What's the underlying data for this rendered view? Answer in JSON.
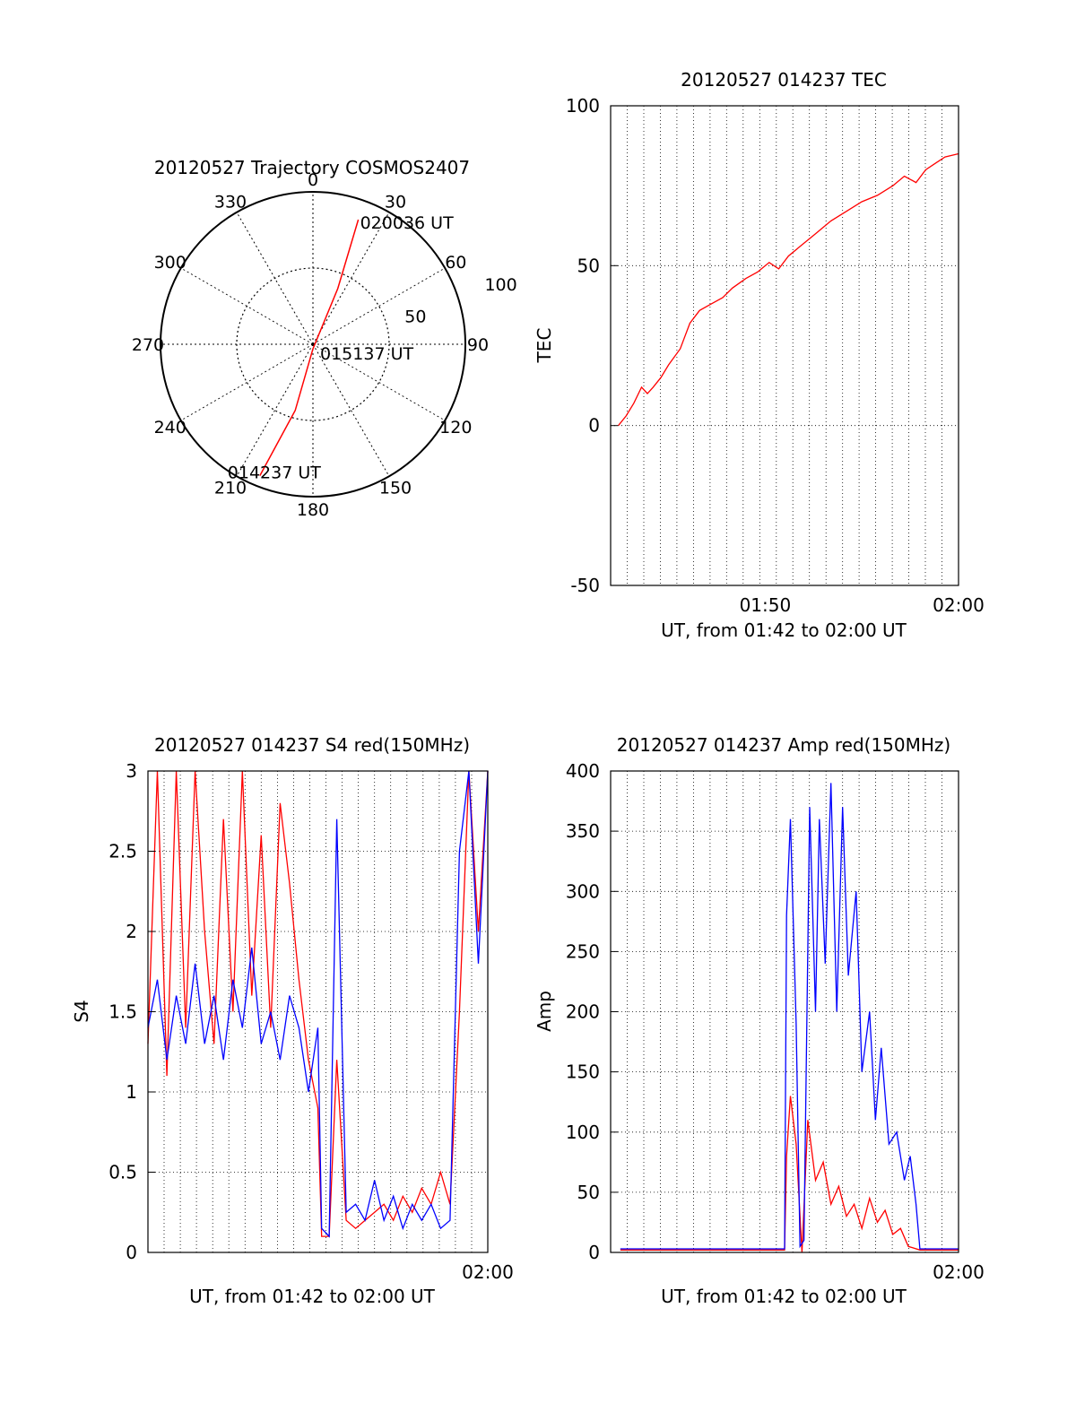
{
  "colors": {
    "red": "#ff0000",
    "blue": "#0000ff",
    "axis": "#000000",
    "grid": "#000000"
  },
  "chart_data": [
    {
      "id": "trajectory",
      "type": "polar",
      "title": "20120527 Trajectory COSMOS2407",
      "azimuth_labels": [
        "0",
        "30",
        "60",
        "90",
        "120",
        "150",
        "180",
        "210",
        "240",
        "270",
        "300",
        "330"
      ],
      "radial_labels": [
        "50",
        "100"
      ],
      "grid": true,
      "series": [
        {
          "color": "#ff0000",
          "points": [
            {
              "az": 202,
              "el_ratio": 0.93
            },
            {
              "az": 195,
              "el_ratio": 0.45
            },
            {
              "az": 180,
              "el_ratio": 0.03
            },
            {
              "az": 24,
              "el_ratio": 0.4
            },
            {
              "az": 20,
              "el_ratio": 0.87
            }
          ]
        }
      ],
      "annotations": [
        {
          "text": "020036 UT",
          "az": 20,
          "el_ratio": 0.87
        },
        {
          "text": "015137 UT",
          "az": 180,
          "el_ratio": 0.03
        },
        {
          "text": "014237 UT",
          "az": 202,
          "el_ratio": 0.93
        }
      ]
    },
    {
      "id": "tec",
      "type": "line",
      "title": "20120527 014237 TEC",
      "xlabel": "UT, from 01:42 to 02:00 UT",
      "ylabel": "TEC",
      "xlim": [
        0,
        18.0
      ],
      "ylim": [
        -50,
        100
      ],
      "yticks": [
        "100",
        "50",
        "0",
        "-50"
      ],
      "ytick_values": [
        100,
        50,
        0,
        -50
      ],
      "xticks": [
        "01:50",
        "02:00"
      ],
      "xtick_values": [
        8,
        18
      ],
      "grid": true,
      "series": [
        {
          "color": "#ff0000",
          "x": [
            0.4,
            0.8,
            1.2,
            1.6,
            1.9,
            2.2,
            2.6,
            3.0,
            3.6,
            4.1,
            4.6,
            5.2,
            5.8,
            6.3,
            7.0,
            7.6,
            8.2,
            8.7,
            9.2,
            9.8,
            10.6,
            11.4,
            12.2,
            13.0,
            13.8,
            14.6,
            15.2,
            15.8,
            16.3,
            16.8,
            17.3,
            18.0
          ],
          "y": [
            0,
            3,
            7,
            12,
            10,
            12,
            15,
            19,
            24,
            32,
            36,
            38,
            40,
            43,
            46,
            48,
            51,
            49,
            53,
            56,
            60,
            64,
            67,
            70,
            72,
            75,
            78,
            76,
            80,
            82,
            84,
            85
          ]
        }
      ]
    },
    {
      "id": "s4",
      "type": "line",
      "title": "20120527 014237 S4 red(150MHz)",
      "xlabel": "UT, from 01:42 to 02:00 UT",
      "ylabel": "S4",
      "xlim": [
        0,
        18.0
      ],
      "ylim": [
        0,
        3
      ],
      "yticks": [
        "3",
        "2.5",
        "2",
        "1.5",
        "1",
        "0.5",
        "0"
      ],
      "ytick_values": [
        3,
        2.5,
        2,
        1.5,
        1,
        0.5,
        0
      ],
      "xticks": [
        "02:00"
      ],
      "xtick_values": [
        18
      ],
      "grid": true,
      "series": [
        {
          "color": "#ff0000",
          "x": [
            0.0,
            0.5,
            1.0,
            1.5,
            2.0,
            2.5,
            3.0,
            3.5,
            4.0,
            4.5,
            5.0,
            5.5,
            6.0,
            6.5,
            7.0,
            7.5,
            8.0,
            8.5,
            9.0,
            9.2,
            9.6,
            10.0,
            10.5,
            11.0,
            11.5,
            12.0,
            12.5,
            13.0,
            13.5,
            14.0,
            14.5,
            15.0,
            15.5,
            16.0,
            16.5,
            17.0,
            17.5,
            18.0
          ],
          "y": [
            1.3,
            3.0,
            1.1,
            3.0,
            1.4,
            3.0,
            2.0,
            1.3,
            2.7,
            1.5,
            3.0,
            1.6,
            2.6,
            1.4,
            2.8,
            2.3,
            1.7,
            1.2,
            0.9,
            0.1,
            0.1,
            1.2,
            0.2,
            0.15,
            0.2,
            0.25,
            0.3,
            0.2,
            0.35,
            0.25,
            0.4,
            0.3,
            0.5,
            0.3,
            1.5,
            3.0,
            2.0,
            3.0
          ]
        },
        {
          "color": "#0000ff",
          "x": [
            0.0,
            0.5,
            1.0,
            1.5,
            2.0,
            2.5,
            3.0,
            3.5,
            4.0,
            4.5,
            5.0,
            5.5,
            6.0,
            6.5,
            7.0,
            7.5,
            8.0,
            8.5,
            9.0,
            9.2,
            9.6,
            10.0,
            10.5,
            11.0,
            11.5,
            12.0,
            12.5,
            13.0,
            13.5,
            14.0,
            14.5,
            15.0,
            15.5,
            16.0,
            16.5,
            17.0,
            17.5,
            18.0
          ],
          "y": [
            1.4,
            1.7,
            1.2,
            1.6,
            1.3,
            1.8,
            1.3,
            1.6,
            1.2,
            1.7,
            1.4,
            1.9,
            1.3,
            1.5,
            1.2,
            1.6,
            1.4,
            1.0,
            1.4,
            0.15,
            0.1,
            2.7,
            0.25,
            0.3,
            0.2,
            0.45,
            0.2,
            0.35,
            0.15,
            0.3,
            0.2,
            0.3,
            0.15,
            0.2,
            2.5,
            3.0,
            1.8,
            3.0
          ]
        }
      ]
    },
    {
      "id": "amp",
      "type": "line",
      "title": "20120527 014237 Amp red(150MHz)",
      "xlabel": "UT, from 01:42 to 02:00 UT",
      "ylabel": "Amp",
      "xlim": [
        0,
        18.0
      ],
      "ylim": [
        0,
        400
      ],
      "yticks": [
        "400",
        "350",
        "300",
        "250",
        "200",
        "150",
        "100",
        "50",
        "0"
      ],
      "ytick_values": [
        400,
        350,
        300,
        250,
        200,
        150,
        100,
        50,
        0
      ],
      "xticks": [
        "02:00"
      ],
      "xtick_values": [
        18
      ],
      "grid": true,
      "series": [
        {
          "color": "#ff0000",
          "x": [
            0.5,
            9.0,
            9.1,
            9.3,
            9.6,
            9.9,
            10.2,
            10.6,
            11.0,
            11.4,
            11.8,
            12.2,
            12.6,
            13.0,
            13.4,
            13.8,
            14.2,
            14.6,
            15.0,
            15.4,
            16.0,
            18.0
          ],
          "y": [
            2,
            2,
            80,
            130,
            90,
            0,
            110,
            60,
            75,
            40,
            55,
            30,
            40,
            20,
            45,
            25,
            35,
            15,
            20,
            5,
            2,
            2
          ]
        },
        {
          "color": "#0000ff",
          "x": [
            0.5,
            9.0,
            9.1,
            9.3,
            9.6,
            9.8,
            10.0,
            10.3,
            10.6,
            10.8,
            11.1,
            11.4,
            11.7,
            12.0,
            12.3,
            12.7,
            13.0,
            13.4,
            13.7,
            14.0,
            14.4,
            14.8,
            15.2,
            15.5,
            15.8,
            16.0,
            18.0
          ],
          "y": [
            3,
            3,
            280,
            360,
            190,
            5,
            10,
            370,
            200,
            360,
            240,
            390,
            200,
            370,
            230,
            300,
            150,
            200,
            110,
            170,
            90,
            100,
            60,
            80,
            40,
            3,
            3
          ]
        }
      ]
    }
  ]
}
